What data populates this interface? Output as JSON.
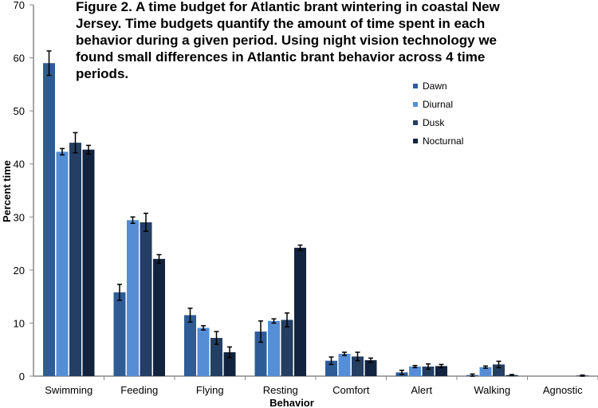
{
  "chart_data": {
    "type": "bar",
    "title": "Figure 2. A time budget for Atlantic brant wintering in coastal New Jersey.  Time budgets quantify the amount of time spent in each behavior during a given period.  Using night vision technology we found small differences in Atlantic brant behavior across 4 time periods.",
    "xlabel": "Behavior",
    "ylabel": "Percent time",
    "ylim": [
      0,
      70
    ],
    "yticks": [
      "0",
      "10",
      "20",
      "30",
      "40",
      "50",
      "60",
      "70"
    ],
    "categories": [
      "Swimming",
      "Feeding",
      "Flying",
      "Resting",
      "Comfort",
      "Alert",
      "Walking",
      "Agnostic"
    ],
    "legend_position": "top-right",
    "series": [
      {
        "name": "Dawn",
        "color": "#2E5C96",
        "values": [
          59,
          15.8,
          11.5,
          8.4,
          2.9,
          0.7,
          0.2,
          0
        ],
        "errors": [
          2.3,
          1.5,
          1.3,
          2.0,
          0.7,
          0.4,
          0.2,
          0
        ]
      },
      {
        "name": "Diurnal",
        "color": "#558ED5",
        "values": [
          42.3,
          29.4,
          9.1,
          10.4,
          4.2,
          1.8,
          1.7,
          0
        ],
        "errors": [
          0.6,
          0.6,
          0.4,
          0.4,
          0.3,
          0.2,
          0.2,
          0
        ]
      },
      {
        "name": "Dusk",
        "color": "#243F63",
        "values": [
          44,
          29,
          7.2,
          10.6,
          3.7,
          1.8,
          2.2,
          0
        ],
        "errors": [
          1.9,
          1.7,
          1.2,
          1.3,
          0.8,
          0.5,
          0.6,
          0
        ]
      },
      {
        "name": "Nocturnal",
        "color": "#12233F",
        "values": [
          42.7,
          22.1,
          4.5,
          24.2,
          3.0,
          1.9,
          0.2,
          0.1
        ],
        "errors": [
          0.8,
          0.8,
          1.0,
          0.5,
          0.4,
          0.3,
          0.1,
          0.1
        ]
      }
    ]
  }
}
